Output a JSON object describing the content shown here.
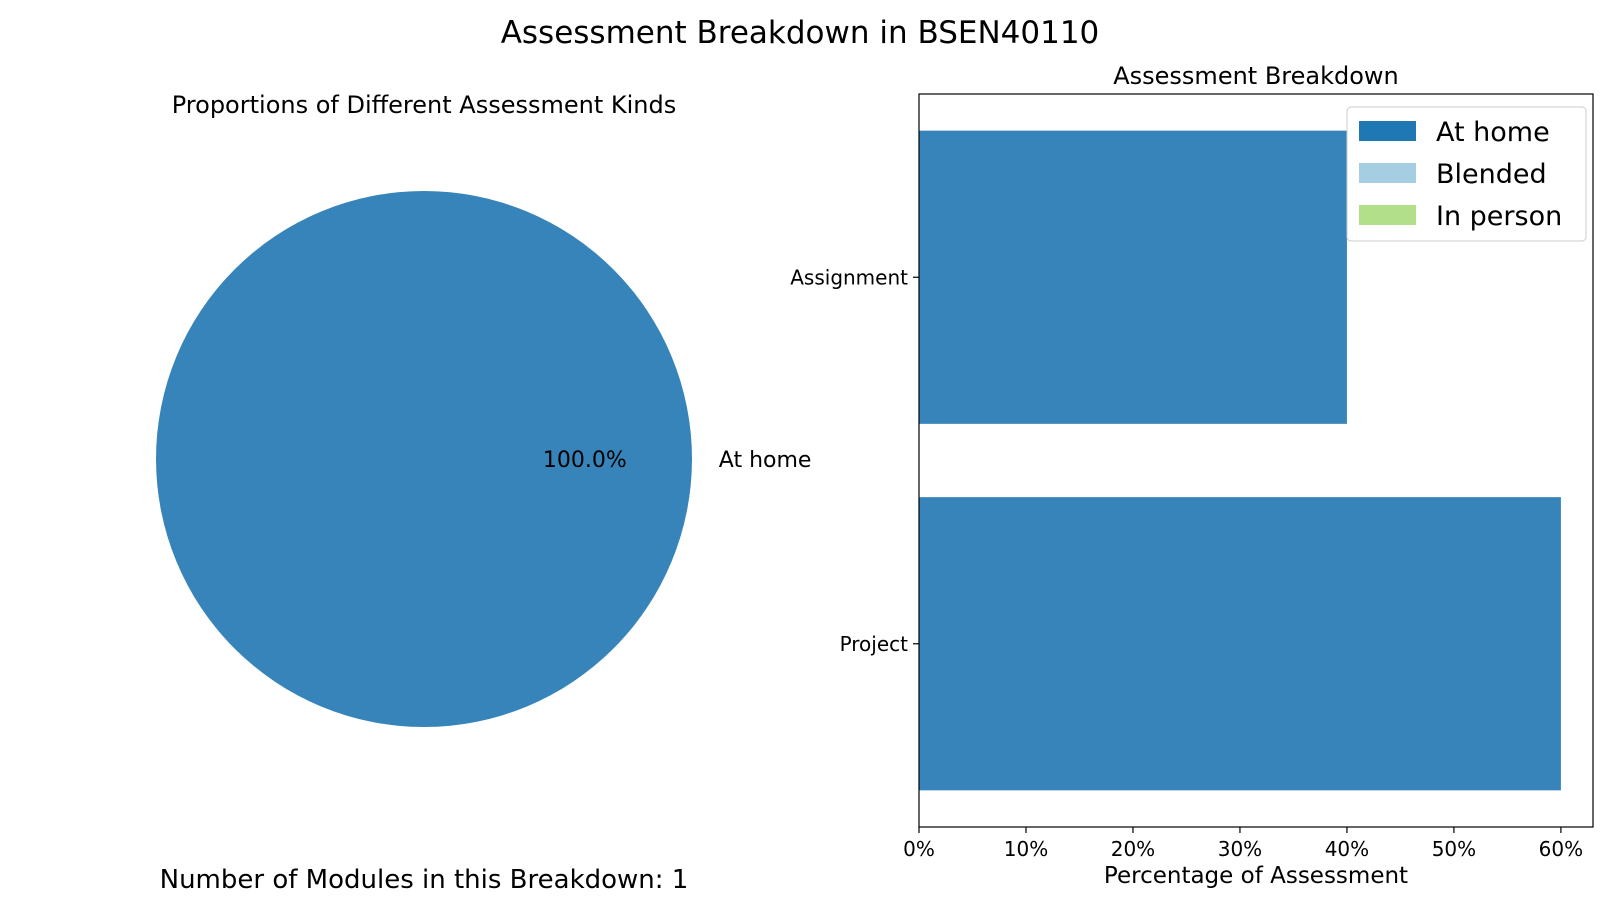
{
  "figure": {
    "title": "Assessment Breakdown in BSEN40110",
    "footer": "Number of Modules in this Breakdown: 1"
  },
  "chart_data": [
    {
      "type": "pie",
      "title": "Proportions of Different Assessment Kinds",
      "slices": [
        {
          "label": "At home",
          "value": 100.0,
          "pct_label": "100.0%",
          "color": "#3684ba"
        }
      ]
    },
    {
      "type": "bar",
      "orientation": "horizontal",
      "stacked": true,
      "title": "Assessment Breakdown",
      "xlabel": "Percentage of Assessment",
      "ylabel": "",
      "categories": [
        "Assignment",
        "Project"
      ],
      "xlim": [
        0,
        63
      ],
      "xticks": [
        0,
        10,
        20,
        30,
        40,
        50,
        60
      ],
      "xtick_labels": [
        "0%",
        "10%",
        "20%",
        "30%",
        "40%",
        "50%",
        "60%"
      ],
      "series": [
        {
          "name": "At home",
          "color": "#3684ba",
          "legend_color": "#1f78b4",
          "values": [
            40,
            60
          ]
        },
        {
          "name": "Blended",
          "color": "#a6cee3",
          "values": [
            0,
            0
          ]
        },
        {
          "name": "In person",
          "color": "#b2df8a",
          "values": [
            0,
            0
          ]
        }
      ],
      "legend": "top-right",
      "grid": false
    }
  ]
}
